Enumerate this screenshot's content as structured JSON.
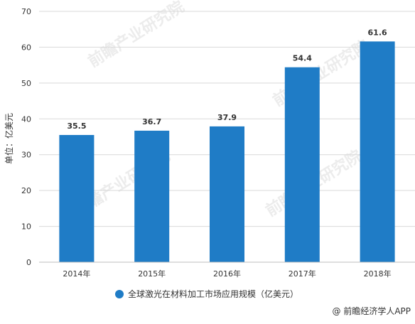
{
  "chart_data": {
    "type": "bar",
    "title": "",
    "xlabel": "",
    "ylabel": "单位：亿美元",
    "categories": [
      "2014年",
      "2015年",
      "2016年",
      "2017年",
      "2018年"
    ],
    "series": [
      {
        "name": "全球激光在材料加工市场应用规模（亿美元）",
        "values": [
          35.5,
          36.7,
          37.9,
          54.4,
          61.6
        ],
        "data_labels": [
          "35.5",
          "36.7",
          "37.9",
          "54.4",
          "61.6"
        ]
      }
    ],
    "ylim": [
      0,
      70
    ],
    "yticks": [
      0,
      10,
      20,
      30,
      40,
      50,
      60,
      70
    ],
    "grid": true,
    "legend_position": "bottom"
  },
  "colors": {
    "bar": "#1f7cc6",
    "grid": "#d9d9d9",
    "axis": "#bfbfbf",
    "text": "#333333",
    "watermark": "#c8c8c8"
  },
  "watermark_text": "前瞻产业研究院",
  "source": {
    "icon": "at-sign-icon",
    "text": "@ 前瞻经济学人APP"
  }
}
